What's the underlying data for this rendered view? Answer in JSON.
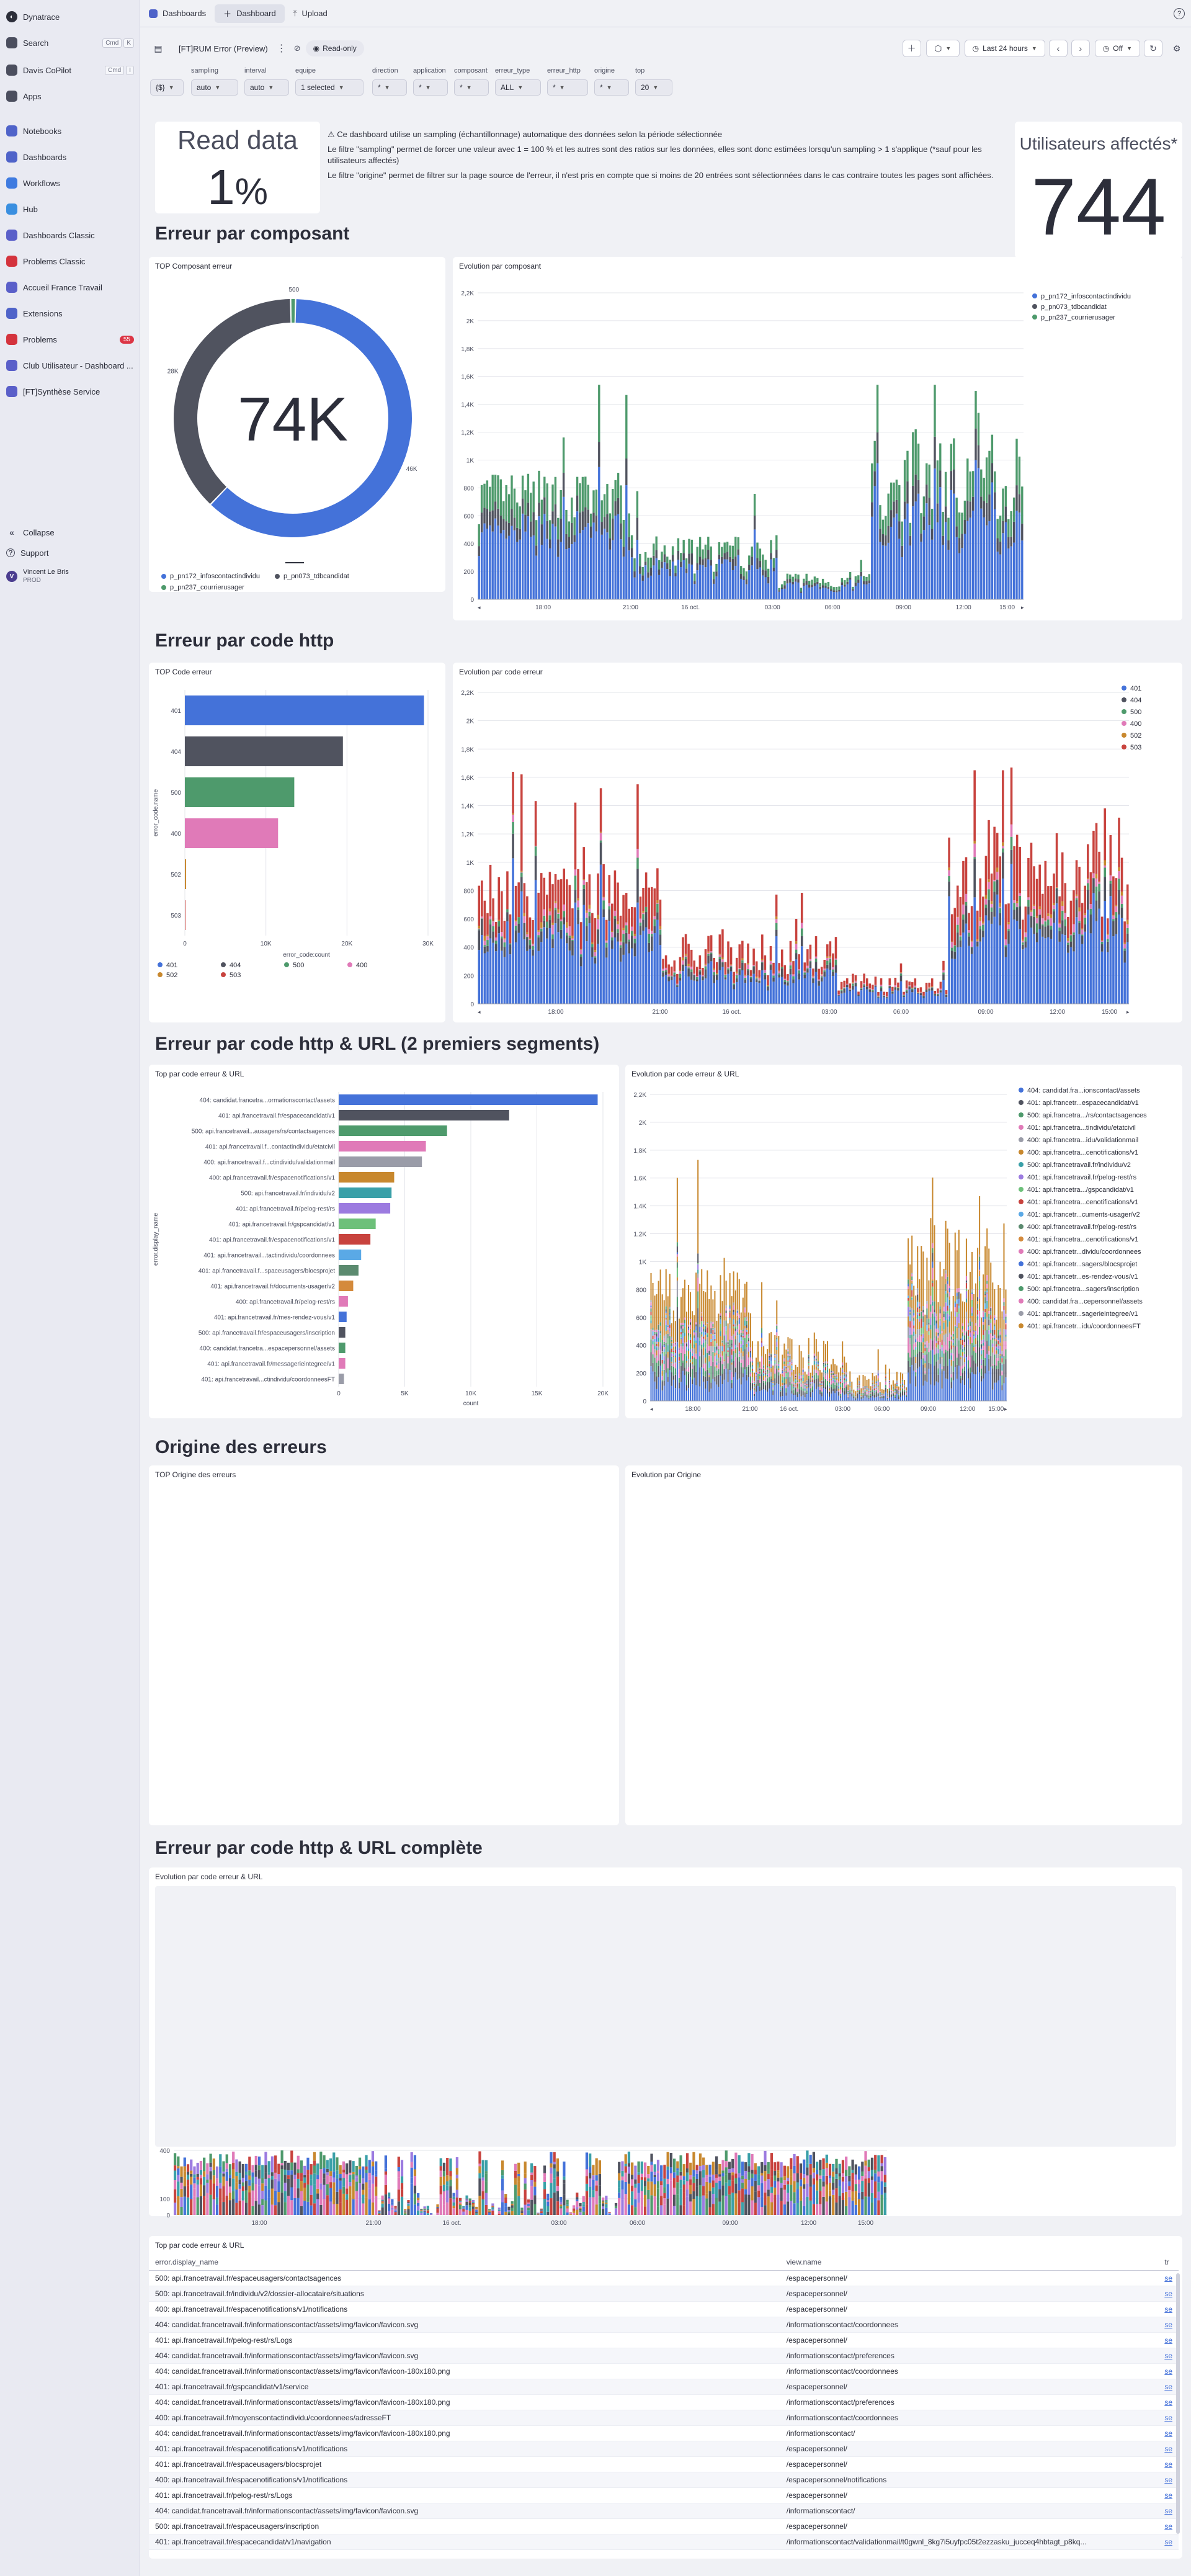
{
  "sidebar": {
    "brand": "Dynatrace",
    "items": [
      {
        "label": "Search",
        "kbd1": "Cmd",
        "kbd2": "K",
        "icon": "search-icon",
        "color": "#4b4e5e"
      },
      {
        "label": "Davis CoPilot",
        "kbd1": "Cmd",
        "kbd2": "I",
        "icon": "copilot-icon",
        "color": "#4b4e5e"
      },
      {
        "label": "Apps",
        "icon": "apps-icon",
        "color": "#4b4e5e"
      },
      {
        "label": "Notebooks",
        "icon": "notebooks-icon",
        "color": "#4f63c9"
      },
      {
        "label": "Dashboards",
        "icon": "dashboards-icon",
        "color": "#4f63c9"
      },
      {
        "label": "Workflows",
        "icon": "workflows-icon",
        "color": "#3f7be0"
      },
      {
        "label": "Hub",
        "icon": "hub-icon",
        "color": "#3a8fe0"
      },
      {
        "label": "Dashboards Classic",
        "icon": "dashboards-classic-icon",
        "color": "#5a5fc9"
      },
      {
        "label": "Problems Classic",
        "icon": "problems-classic-icon",
        "color": "#d4333d"
      },
      {
        "label": "Accueil France Travail",
        "icon": "dashboard-icon",
        "color": "#5a5fc9"
      },
      {
        "label": "Extensions",
        "icon": "extensions-icon",
        "color": "#4f63c9"
      },
      {
        "label": "Problems",
        "icon": "problems-icon",
        "color": "#d4333d",
        "badge": "55"
      },
      {
        "label": "Club Utilisateur - Dashboard ...",
        "icon": "dashboard-icon",
        "color": "#5a5fc9"
      },
      {
        "label": "[FT]Synthèse Service",
        "icon": "dashboard-icon",
        "color": "#5a5fc9"
      }
    ],
    "collapse": "Collapse",
    "support": "Support",
    "user_name": "Vincent Le Bris",
    "user_env": "PROD"
  },
  "topbar": {
    "tab1": "Dashboards",
    "tab2": "Dashboard",
    "tab3": "Upload"
  },
  "toolbar": {
    "title": "[FT]RUM Error (Preview)",
    "readonly": "Read-only",
    "timeframe": "Last 24 hours",
    "refresh": "Off"
  },
  "filters": [
    {
      "label": "",
      "value": "{$}"
    },
    {
      "label": "sampling",
      "value": "auto"
    },
    {
      "label": "interval",
      "value": "auto"
    },
    {
      "label": "equipe",
      "value": "1 selected"
    },
    {
      "label": "direction",
      "value": "*"
    },
    {
      "label": "application",
      "value": "*"
    },
    {
      "label": "composant",
      "value": "*"
    },
    {
      "label": "erreur_type",
      "value": "ALL"
    },
    {
      "label": "erreur_http",
      "value": "*"
    },
    {
      "label": "origine",
      "value": "*"
    },
    {
      "label": "top",
      "value": "20"
    }
  ],
  "kpi": {
    "read_title": "Read data",
    "read_value": "1",
    "read_unit": "%",
    "users_title": "Utilisateurs affectés*",
    "users_value": "744"
  },
  "notes": {
    "line1": "⚠ Ce dashboard utilise un sampling (échantillonnage) automatique des données selon la période sélectionnée",
    "line2": "Le filtre \"sampling\" permet de forcer une valeur avec 1 = 100 % et les autres sont des ratios sur les données, elles sont donc estimées lorsqu'un sampling > 1 s'applique (*sauf pour les utilisateurs affectés)",
    "line3": "Le filtre \"origine\" permet de filtrer sur la page source de l'erreur, il n'est pris en compte que si moins de 20 entrées sont sélectionnées dans le cas contraire toutes les pages sont affichées."
  },
  "sections": {
    "s1": "Erreur par composant",
    "s2": "Erreur par code http",
    "s3": "Erreur par code http & URL (2 premiers segments)",
    "s4": "Origine des erreurs",
    "s5": "Erreur par code http & URL complète"
  },
  "cards": {
    "donut": "TOP Composant erreur",
    "evo_comp": "Evolution par composant",
    "top_code": "TOP Code erreur",
    "evo_code": "Evolution par code erreur",
    "top_url": "Top par code erreur & URL",
    "evo_url": "Evolution par code erreur & URL",
    "top_origin": "TOP Origine des erreurs",
    "evo_origin": "Evolution par Origine",
    "evo_full": "Evolution par code erreur & URL",
    "top_full": "Top par code erreur & URL"
  },
  "colors": {
    "blue": "#4472d9",
    "dark": "#50535f",
    "green": "#4e9a6c",
    "pink": "#e07ab8",
    "orange": "#c8882e",
    "red": "#c8433e",
    "teal": "#3aa0a8"
  },
  "chart_data": [
    {
      "type": "pie",
      "title": "TOP Composant erreur",
      "center_label": "74K",
      "slices": [
        {
          "name": "p_pn172_infoscontactindividu",
          "value": 46000,
          "label": "46K"
        },
        {
          "name": "p_pn073_tdbcandidat",
          "value": 28000,
          "label": "28K"
        },
        {
          "name": "p_pn237_courrierusager",
          "value": 500,
          "label": "500"
        }
      ]
    },
    {
      "type": "bar",
      "title": "Evolution par composant",
      "x_ticks": [
        "18:00",
        "21:00",
        "16 oct.",
        "03:00",
        "06:00",
        "09:00",
        "12:00",
        "15:00"
      ],
      "y_ticks": [
        "0",
        "200",
        "400",
        "600",
        "800",
        "1K",
        "1,2K",
        "1,4K",
        "1,6K",
        "1,8K",
        "2K",
        "2,2K"
      ],
      "ylim": [
        0,
        2200
      ],
      "series": [
        {
          "name": "p_pn172_infoscontactindividu"
        },
        {
          "name": "p_pn073_tdbcandidat"
        },
        {
          "name": "p_pn237_courrierusager"
        }
      ]
    },
    {
      "type": "bar",
      "title": "TOP Code erreur",
      "orientation": "horizontal",
      "categories": [
        "401",
        "404",
        "500",
        "400",
        "502",
        "503"
      ],
      "values": [
        29500,
        19500,
        13500,
        11500,
        150,
        50
      ],
      "x_ticks": [
        "0",
        "10K",
        "20K",
        "30K"
      ],
      "xlim": [
        0,
        30000
      ],
      "xlabel": "error_code:count",
      "ylabel": "error_code.name",
      "series": [
        {
          "name": "401"
        },
        {
          "name": "404"
        },
        {
          "name": "500"
        },
        {
          "name": "400"
        },
        {
          "name": "502"
        },
        {
          "name": "503"
        }
      ]
    },
    {
      "type": "bar",
      "title": "Evolution par code erreur",
      "x_ticks": [
        "18:00",
        "21:00",
        "16 oct.",
        "03:00",
        "06:00",
        "09:00",
        "12:00",
        "15:00"
      ],
      "y_ticks": [
        "0",
        "200",
        "400",
        "600",
        "800",
        "1K",
        "1,2K",
        "1,4K",
        "1,6K",
        "1,8K",
        "2K",
        "2,2K"
      ],
      "ylim": [
        0,
        2200
      ],
      "series": [
        {
          "name": "401"
        },
        {
          "name": "404"
        },
        {
          "name": "500"
        },
        {
          "name": "400"
        },
        {
          "name": "502"
        },
        {
          "name": "503"
        }
      ]
    },
    {
      "type": "bar",
      "title": "Top par code erreur & URL",
      "orientation": "horizontal",
      "categories": [
        "404: candidat.francetra...ormationscontact/assets",
        "401: api.francetravail.fr/espacecandidat/v1",
        "500: api.francetravail...ausagers/rs/contactsagences",
        "401: api.francetravail.f...contactindividu/etatcivil",
        "400: api.francetravail.f...ctindividu/validationmail",
        "400: api.francetravail.fr/espacenotifications/v1",
        "500: api.francetravail.fr/individu/v2",
        "401: api.francetravail.fr/pelog-rest/rs",
        "401: api.francetravail.fr/gspcandidat/v1",
        "401: api.francetravail.fr/espacenotifications/v1",
        "401: api.francetravail...tactindividu/coordonnees",
        "401: api.francetravail.f...spaceusagers/blocsprojet",
        "401: api.francetravail.fr/documents-usager/v2",
        "400: api.francetravail.fr/pelog-rest/rs",
        "401: api.francetravail.fr/mes-rendez-vous/v1",
        "500: api.francetravail.fr/espaceusagers/inscription",
        "400: candidat.francetra...espacepersonnel/assets",
        "401: api.francetravail.fr/messagerieintegree/v1",
        "401: api.francetravail...ctindividu/coordonneesFT"
      ],
      "values": [
        19600,
        12900,
        8200,
        6600,
        6300,
        4200,
        4000,
        3900,
        2800,
        2400,
        1700,
        1500,
        1100,
        700,
        600,
        500,
        500,
        500,
        400
      ],
      "colors": [
        "#4472d9",
        "#50535f",
        "#4e9a6c",
        "#e07ab8",
        "#9a9ca8",
        "#c8882e",
        "#3aa0a8",
        "#9c7be0",
        "#6dc07a",
        "#c8433e",
        "#5aa9e6",
        "#5b8a6f",
        "#d48a3c",
        "#e07ab8",
        "#4472d9",
        "#50535f",
        "#4e9a6c",
        "#e07ab8",
        "#9a9ca8"
      ],
      "x_ticks": [
        "0",
        "5K",
        "10K",
        "15K",
        "20K"
      ],
      "xlim": [
        0,
        20000
      ],
      "xlabel": "count",
      "ylabel": "error.display_name"
    },
    {
      "type": "bar",
      "title": "Evolution par code erreur & URL",
      "x_ticks": [
        "18:00",
        "21:00",
        "16 oct.",
        "03:00",
        "06:00",
        "09:00",
        "12:00",
        "15:00"
      ],
      "y_ticks": [
        "0",
        "200",
        "400",
        "600",
        "800",
        "1K",
        "1,2K",
        "1,4K",
        "1,6K",
        "1,8K",
        "2K",
        "2,2K"
      ],
      "ylim": [
        0,
        2200
      ],
      "series": [
        {
          "name": "404: candidat.fra...ionscontact/assets"
        },
        {
          "name": "401: api.francetr...espacecandidat/v1"
        },
        {
          "name": "500: api.francetra.../rs/contactsagences"
        },
        {
          "name": "401: api.francetra...tindividu/etatcivil"
        },
        {
          "name": "400: api.francetra...idu/validationmail"
        },
        {
          "name": "400: api.francetra...cenotifications/v1"
        },
        {
          "name": "500: api.francetravail.fr/individu/v2"
        },
        {
          "name": "401: api.francetravail.fr/pelog-rest/rs"
        },
        {
          "name": "401: api.francetra.../gspcandidat/v1"
        },
        {
          "name": "401: api.francetra...cenotifications/v1"
        },
        {
          "name": "401: api.francetr...cuments-usager/v2"
        },
        {
          "name": "400: api.francetravail.fr/pelog-rest/rs"
        },
        {
          "name": "401: api.francetra...cenotifications/v1"
        },
        {
          "name": "400: api.francetr...dividu/coordonnees"
        },
        {
          "name": "401: api.francetr...sagers/blocsprojet"
        },
        {
          "name": "401: api.francetr...es-rendez-vous/v1"
        },
        {
          "name": "500: api.francetra...sagers/inscription"
        },
        {
          "name": "400: candidat.fra...cepersonnel/assets"
        },
        {
          "name": "401: api.francetr...sagerieintegree/v1"
        },
        {
          "name": "401: api.francetr...idu/coordonneesFT"
        }
      ]
    },
    {
      "type": "bar",
      "title": "Evolution par code erreur & URL",
      "x_ticks": [
        "18:00",
        "21:00",
        "16 oct.",
        "03:00",
        "06:00",
        "09:00",
        "12:00",
        "15:00"
      ],
      "y_ticks": [
        "0",
        "100",
        "400"
      ],
      "ylim": [
        0,
        400
      ]
    }
  ],
  "url_table": {
    "headers": [
      "error.display_name",
      "view.name",
      "tr"
    ],
    "rows": [
      [
        "500: api.francetravail.fr/espaceusagers/contactsagences",
        "/espacepersonnel/",
        "se"
      ],
      [
        "500: api.francetravail.fr/individu/v2/dossier-allocataire/situations",
        "/espacepersonnel/",
        "se"
      ],
      [
        "400: api.francetravail.fr/espacenotifications/v1/notifications",
        "/espacepersonnel/",
        "se"
      ],
      [
        "404: candidat.francetravail.fr/informationscontact/assets/img/favicon/favicon.svg",
        "/informationscontact/coordonnees",
        "se"
      ],
      [
        "401: api.francetravail.fr/pelog-rest/rs/Logs",
        "/espacepersonnel/",
        "se"
      ],
      [
        "404: candidat.francetravail.fr/informationscontact/assets/img/favicon/favicon.svg",
        "/informationscontact/preferences",
        "se"
      ],
      [
        "404: candidat.francetravail.fr/informationscontact/assets/img/favicon/favicon-180x180.png",
        "/informationscontact/coordonnees",
        "se"
      ],
      [
        "401: api.francetravail.fr/gspcandidat/v1/service",
        "/espacepersonnel/",
        "se"
      ],
      [
        "404: candidat.francetravail.fr/informationscontact/assets/img/favicon/favicon-180x180.png",
        "/informationscontact/preferences",
        "se"
      ],
      [
        "400: api.francetravail.fr/moyenscontactindividu/coordonnees/adresseFT",
        "/informationscontact/coordonnees",
        "se"
      ],
      [
        "404: candidat.francetravail.fr/informationscontact/assets/img/favicon/favicon-180x180.png",
        "/informationscontact/",
        "se"
      ],
      [
        "401: api.francetravail.fr/espacenotifications/v1/notifications",
        "/espacepersonnel/",
        "se"
      ],
      [
        "401: api.francetravail.fr/espaceusagers/blocsprojet",
        "/espacepersonnel/",
        "se"
      ],
      [
        "400: api.francetravail.fr/espacenotifications/v1/notifications",
        "/espacepersonnel/notifications",
        "se"
      ],
      [
        "401: api.francetravail.fr/pelog-rest/rs/Logs",
        "/espacepersonnel/",
        "se"
      ],
      [
        "404: candidat.francetravail.fr/informationscontact/assets/img/favicon/favicon.svg",
        "/informationscontact/",
        "se"
      ],
      [
        "500: api.francetravail.fr/espaceusagers/inscription",
        "/espacepersonnel/",
        "se"
      ],
      [
        "401: api.francetravail.fr/espacecandidat/v1/navigation",
        "/informationscontact/validationmail/t0gwnl_8kg7i5uyfpc05t2ezzasku_jucceq4hbtagt_p8kq...",
        "se"
      ]
    ]
  }
}
